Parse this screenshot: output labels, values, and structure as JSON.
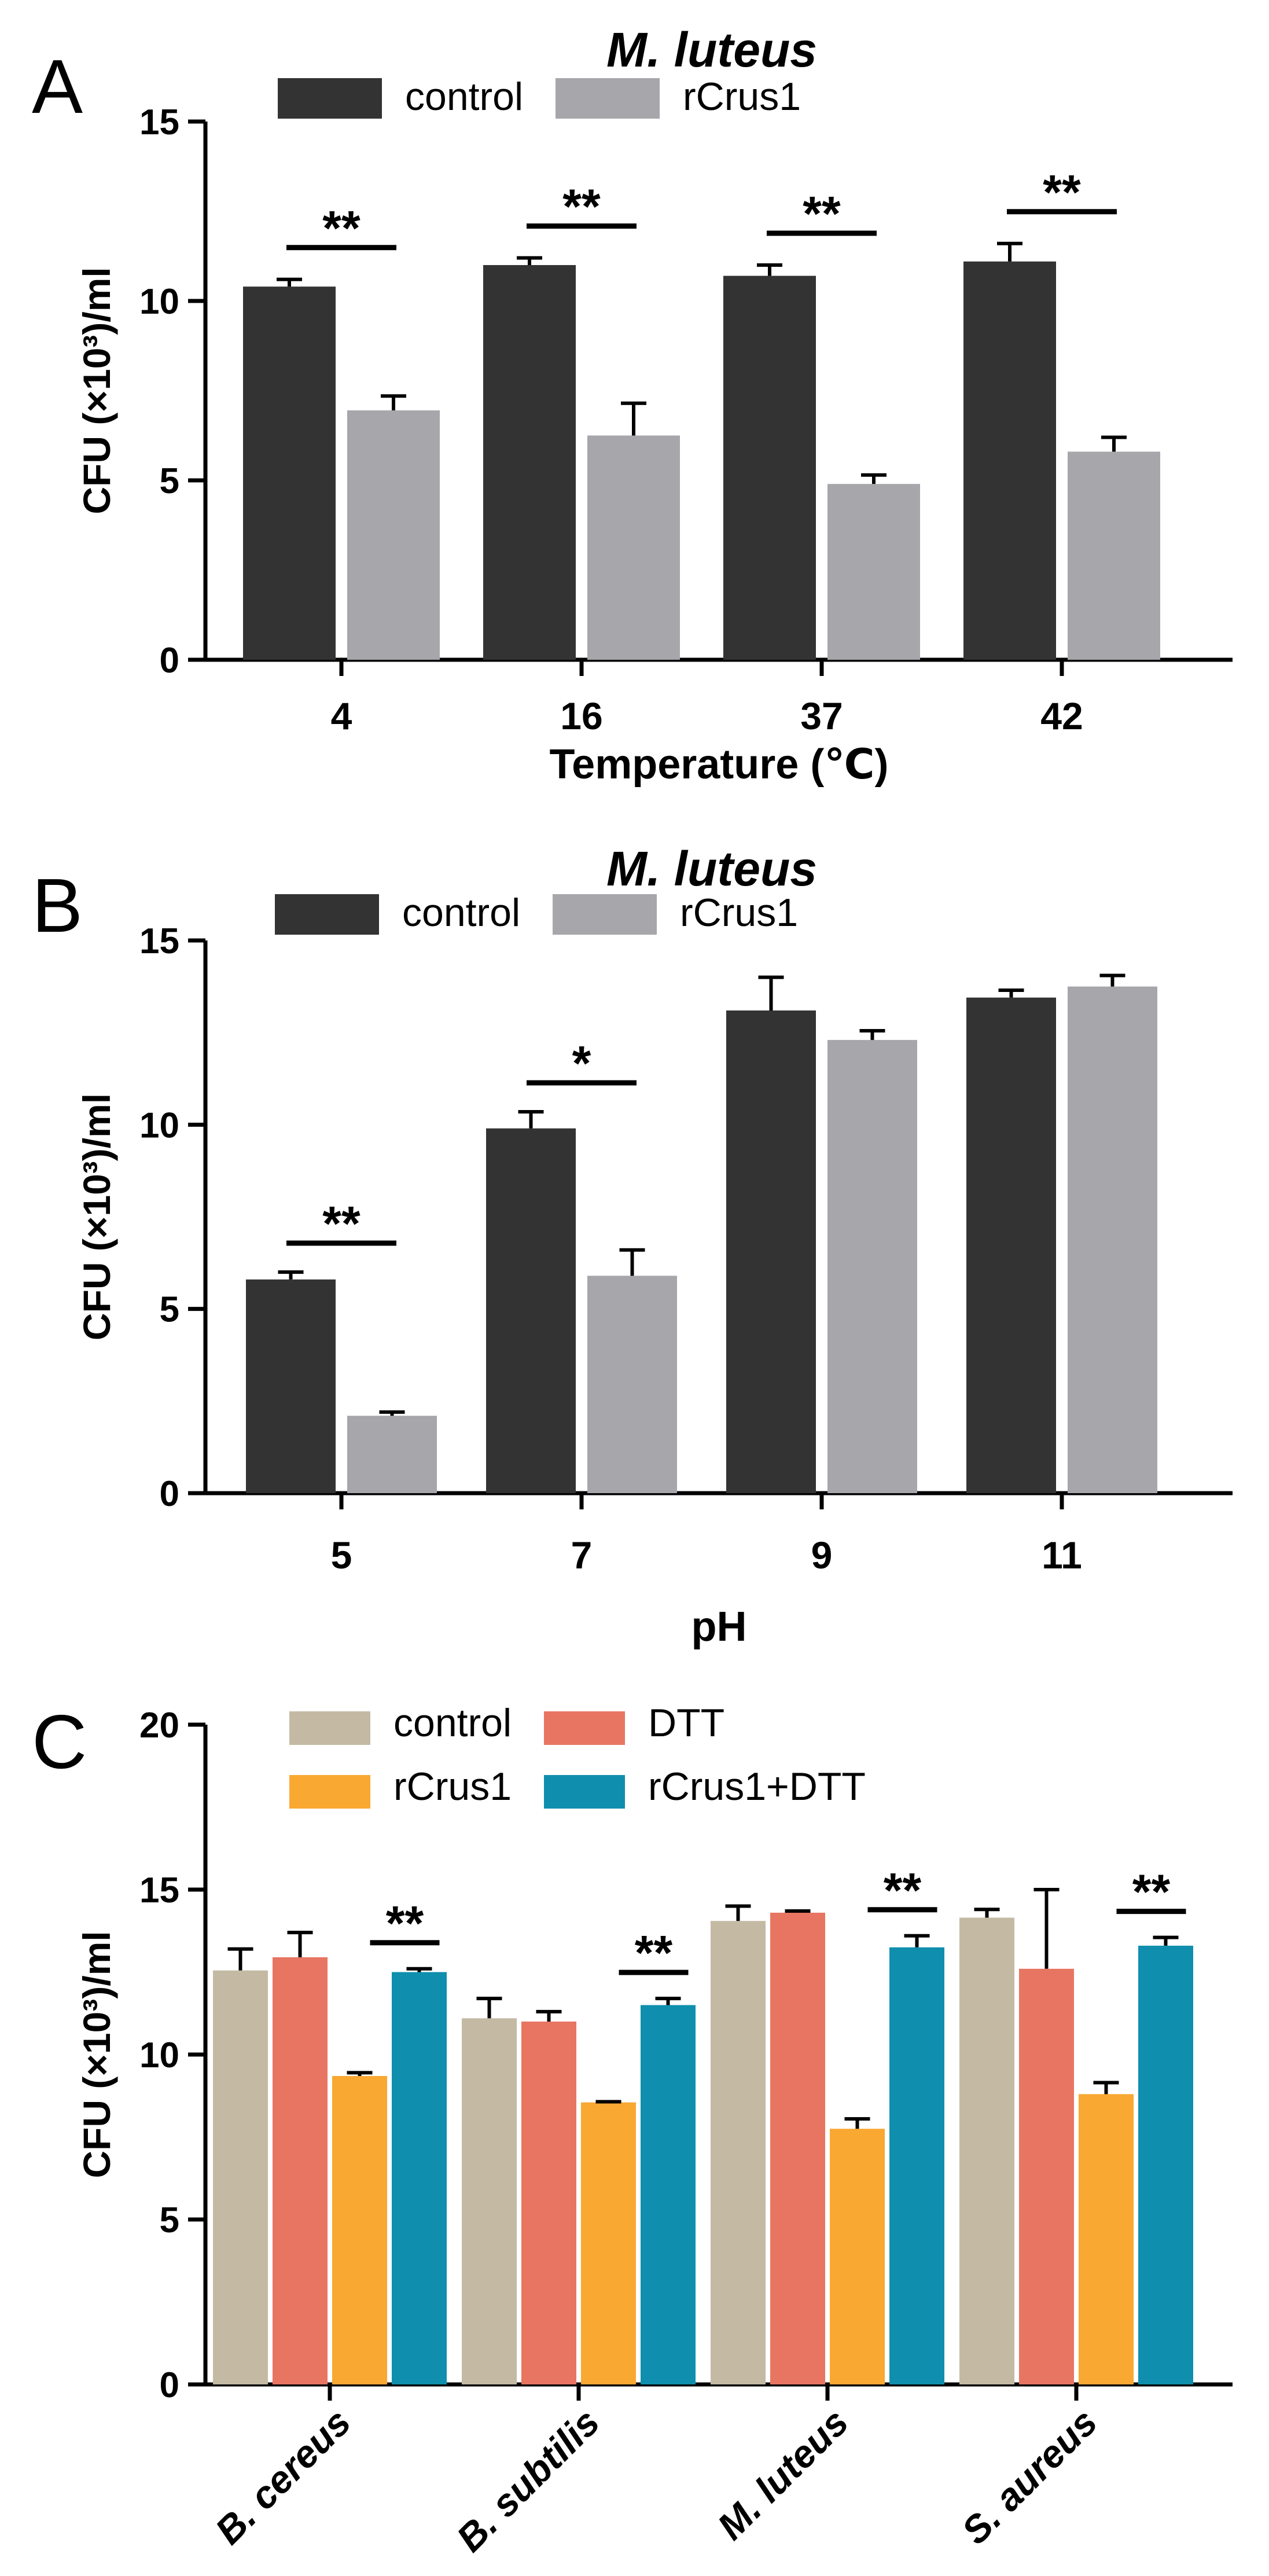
{
  "colors": {
    "control_dark": "#333333",
    "rcrus1_gray": "#a6a6ab",
    "control_tan": "#c4baa4",
    "dtt_salmon": "#e87561",
    "rcrus1_orange": "#f9a832",
    "rcrus1_dtt_teal": "#0f8fad"
  },
  "chart_data": [
    {
      "panel": "A",
      "type": "bar",
      "title": "M. luteus",
      "xlabel": "Temperature  (℃)",
      "ylabel": "CFU (×10³)/ml",
      "ylim": [
        0,
        15
      ],
      "yticks": [
        "0",
        "5",
        "10",
        "15"
      ],
      "yticks_values": [
        0,
        5,
        10,
        15
      ],
      "categories": [
        "4",
        "16",
        "37",
        "42"
      ],
      "legend": {
        "placement": "top-left",
        "columns": 2
      },
      "series": [
        {
          "name": "control",
          "color": "#333333",
          "values": [
            10.4,
            11.0,
            10.7,
            11.1
          ],
          "errors": [
            0.2,
            0.2,
            0.3,
            0.5
          ]
        },
        {
          "name": "rCrus1",
          "color": "#a6a6ab",
          "values": [
            6.95,
            6.25,
            4.9,
            5.8
          ],
          "errors": [
            0.4,
            0.9,
            0.25,
            0.4
          ]
        }
      ],
      "significance": [
        "**",
        "**",
        "**",
        "**"
      ]
    },
    {
      "panel": "B",
      "type": "bar",
      "title": "M. luteus",
      "xlabel": "pH",
      "ylabel": "CFU (×10³)/ml",
      "ylim": [
        0,
        15
      ],
      "yticks": [
        "0",
        "5",
        "10",
        "15"
      ],
      "yticks_values": [
        0,
        5,
        10,
        15
      ],
      "categories": [
        "5",
        "7",
        "9",
        "11"
      ],
      "legend": {
        "placement": "top-left",
        "columns": 2
      },
      "series": [
        {
          "name": "control",
          "color": "#333333",
          "values": [
            5.8,
            9.9,
            13.1,
            13.45
          ],
          "errors": [
            0.2,
            0.45,
            0.9,
            0.2
          ]
        },
        {
          "name": "rCrus1",
          "color": "#a6a6ab",
          "values": [
            2.1,
            5.9,
            12.3,
            13.75
          ],
          "errors": [
            0.1,
            0.7,
            0.25,
            0.3
          ]
        }
      ],
      "significance": [
        "**",
        "*",
        "",
        ""
      ]
    },
    {
      "panel": "C",
      "type": "bar",
      "title": "",
      "xlabel": "",
      "ylabel": "CFU (×10³)/ml",
      "ylim": [
        0,
        20
      ],
      "yticks": [
        "0",
        "5",
        "10",
        "15",
        "20"
      ],
      "yticks_values": [
        0,
        5,
        10,
        15,
        20
      ],
      "categories": [
        "B. cereus",
        "B. subtilis",
        "M. luteus",
        "S. aureus"
      ],
      "legend": {
        "placement": "top-left",
        "columns": 2
      },
      "series": [
        {
          "name": "control",
          "color": "#c4baa4",
          "values": [
            12.55,
            11.1,
            14.05,
            14.15
          ],
          "errors": [
            0.65,
            0.6,
            0.45,
            0.25
          ]
        },
        {
          "name": "DTT",
          "color": "#e87561",
          "values": [
            12.95,
            11.0,
            14.3,
            12.6
          ],
          "errors": [
            0.75,
            0.3,
            0.05,
            2.4
          ]
        },
        {
          "name": "rCrus1",
          "color": "#f9a832",
          "values": [
            9.35,
            8.55,
            7.75,
            8.8
          ],
          "errors": [
            0.1,
            0.02,
            0.3,
            0.35
          ]
        },
        {
          "name": "rCrus1+DTT",
          "color": "#0f8fad",
          "values": [
            12.5,
            11.5,
            13.25,
            13.3
          ],
          "errors": [
            0.1,
            0.2,
            0.35,
            0.25
          ]
        }
      ],
      "significance": [
        "**",
        "**",
        "**",
        "**"
      ]
    }
  ]
}
